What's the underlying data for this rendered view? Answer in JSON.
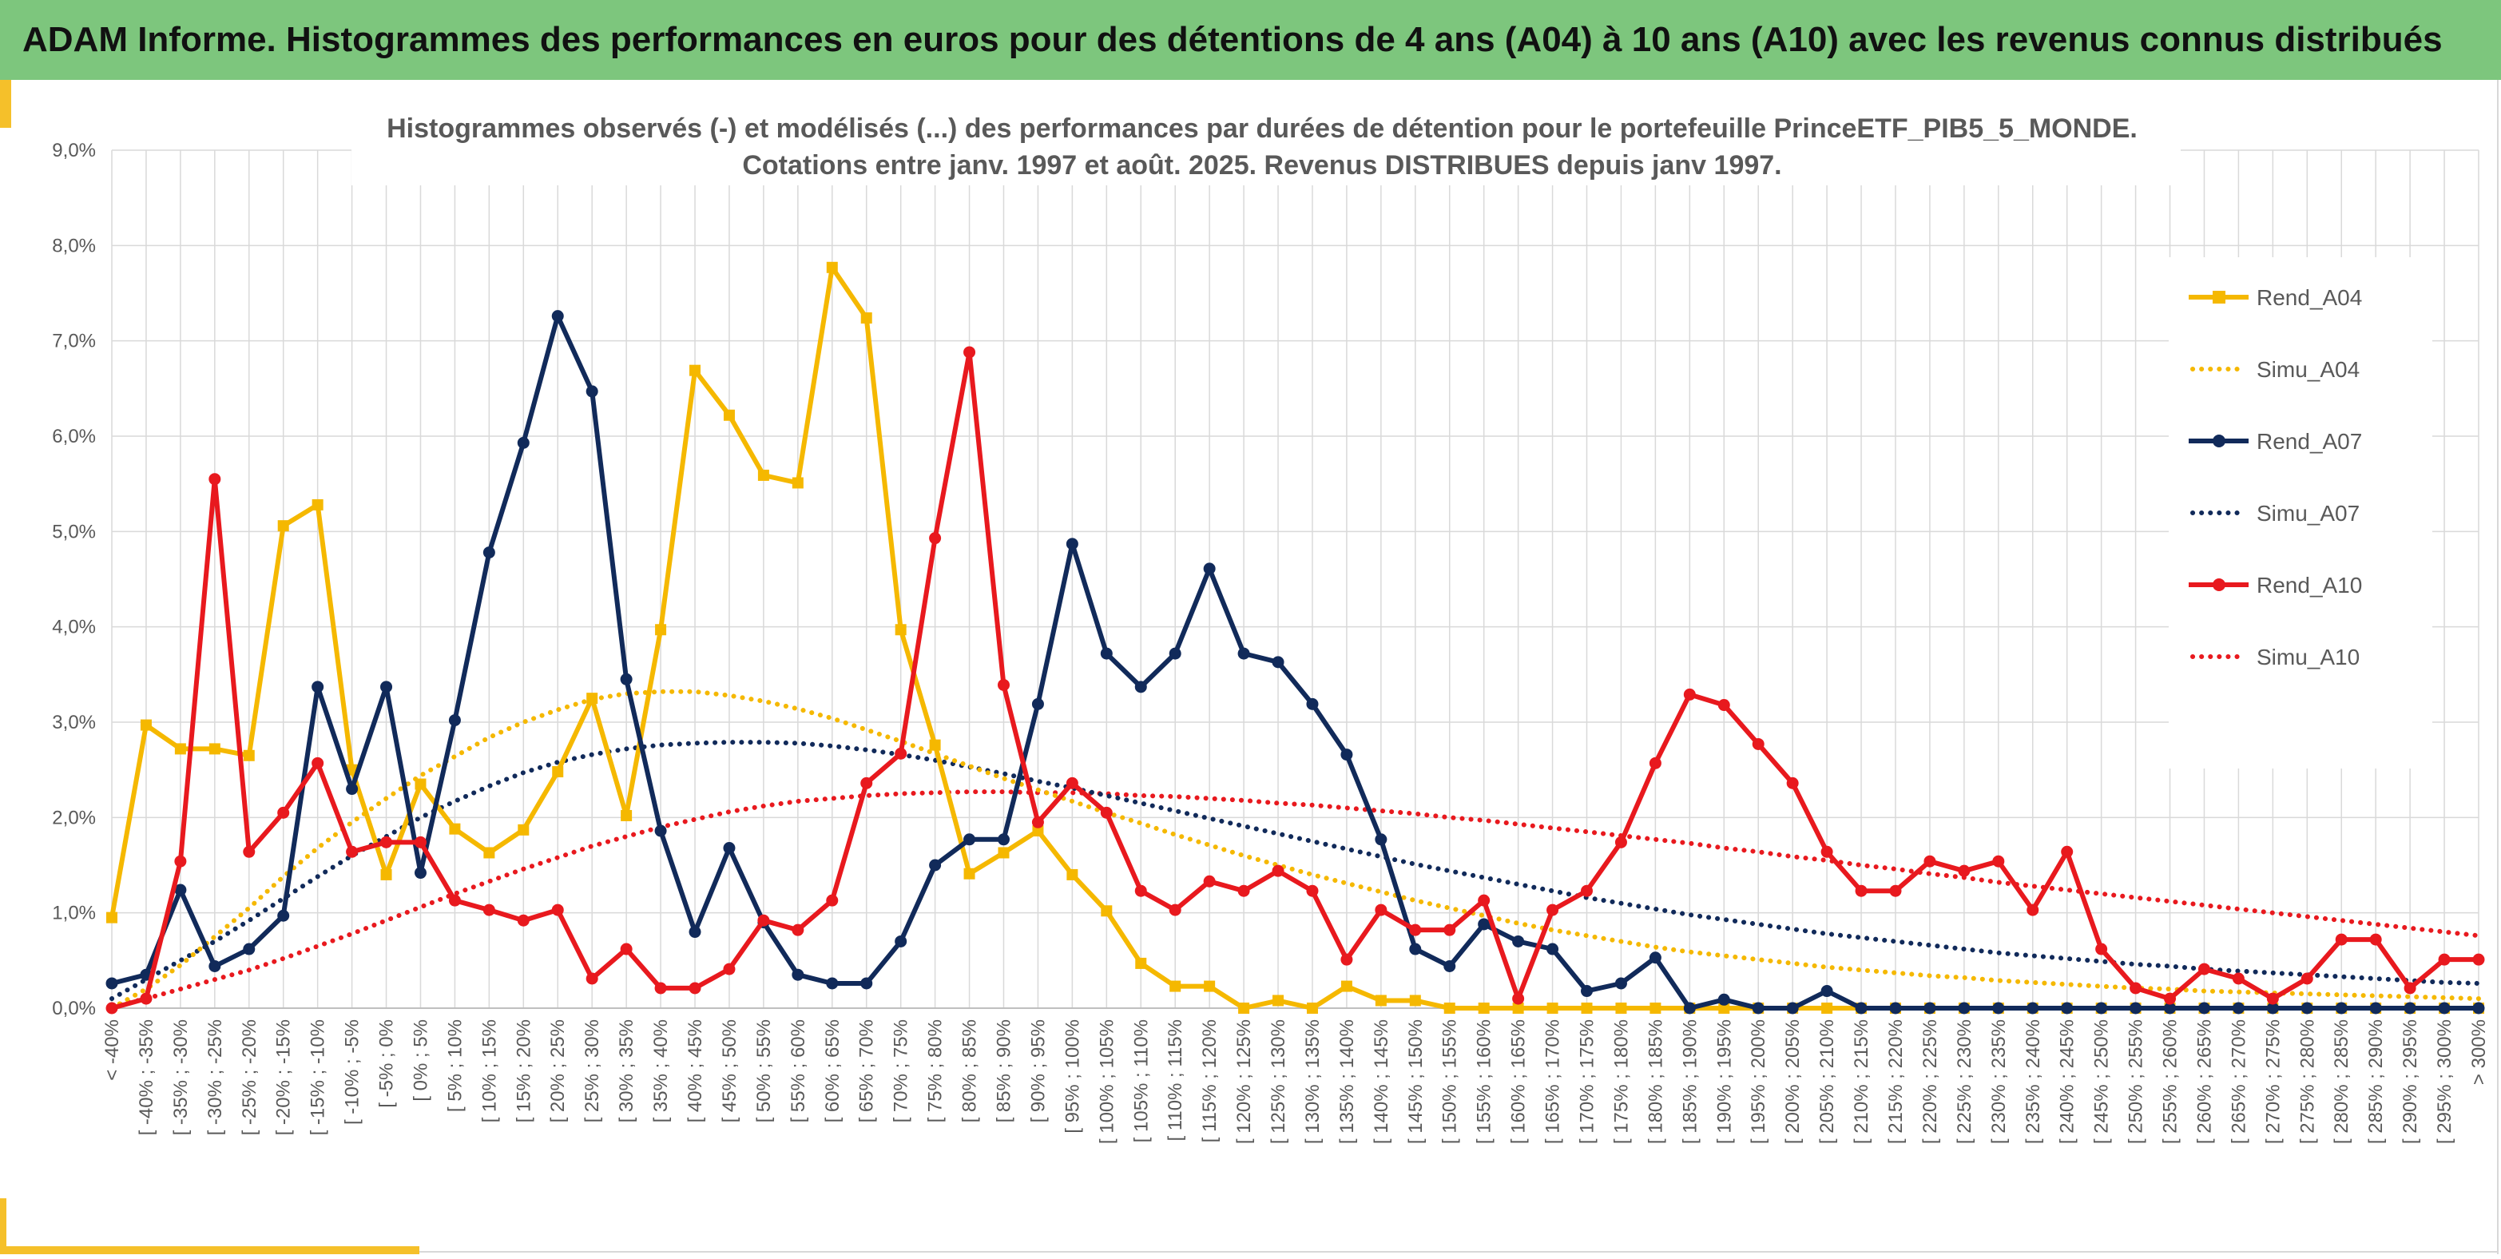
{
  "banner": {
    "title": "ADAM Informe. Histogrammes des performances en euros pour des détentions de 4 ans (A04) à 10 ans (A10) avec les revenus connus distribués",
    "bg_color": "#7dc67d",
    "accent_color": "#f5c02a"
  },
  "chart_data": {
    "type": "line",
    "title_line1": "Histogrammes observés (-) et modélisés (...) des performances par durées de détention pour le portefeuille PrinceETF_PIB5_5_MONDE.",
    "title_line2": "Cotations entre janv. 1997 et août. 2025. Revenus DISTRIBUES depuis janv 1997.",
    "xlabel": "",
    "ylabel": "",
    "ylim": [
      0,
      9
    ],
    "yticks": [
      "0,0%",
      "1,0%",
      "2,0%",
      "3,0%",
      "4,0%",
      "5,0%",
      "6,0%",
      "7,0%",
      "8,0%",
      "9,0%"
    ],
    "grid": true,
    "legend_position": "right",
    "categories": [
      "< -40%",
      "[ -40% ; -35%",
      "[ -35% ; -30%",
      "[ -30% ; -25%",
      "[ -25% ; -20%",
      "[ -20% ; -15%",
      "[ -15% ; -10%",
      "[ -10% ; -5%",
      "[ -5% ; 0%",
      "[ 0% ; 5%",
      "[ 5% ; 10%",
      "[ 10% ; 15%",
      "[ 15% ; 20%",
      "[ 20% ; 25%",
      "[ 25% ; 30%",
      "[ 30% ; 35%",
      "[ 35% ; 40%",
      "[ 40% ; 45%",
      "[ 45% ; 50%",
      "[ 50% ; 55%",
      "[ 55% ; 60%",
      "[ 60% ; 65%",
      "[ 65% ; 70%",
      "[ 70% ; 75%",
      "[ 75% ; 80%",
      "[ 80% ; 85%",
      "[ 85% ; 90%",
      "[ 90% ; 95%",
      "[ 95% ; 100%",
      "[ 100% ; 105%",
      "[ 105% ; 110%",
      "[ 110% ; 115%",
      "[ 115% ; 120%",
      "[ 120% ; 125%",
      "[ 125% ; 130%",
      "[ 130% ; 135%",
      "[ 135% ; 140%",
      "[ 140% ; 145%",
      "[ 145% ; 150%",
      "[ 150% ; 155%",
      "[ 155% ; 160%",
      "[ 160% ; 165%",
      "[ 165% ; 170%",
      "[ 170% ; 175%",
      "[ 175% ; 180%",
      "[ 180% ; 185%",
      "[ 185% ; 190%",
      "[ 190% ; 195%",
      "[ 195% ; 200%",
      "[ 200% ; 205%",
      "[ 205% ; 210%",
      "[ 210% ; 215%",
      "[ 215% ; 220%",
      "[ 220% ; 225%",
      "[ 225% ; 230%",
      "[ 230% ; 235%",
      "[ 235% ; 240%",
      "[ 240% ; 245%",
      "[ 245% ; 250%",
      "[ 250% ; 255%",
      "[ 255% ; 260%",
      "[ 260% ; 265%",
      "[ 265% ; 270%",
      "[ 270% ; 275%",
      "[ 275% ; 280%",
      "[ 280% ; 285%",
      "[ 285% ; 290%",
      "[ 290% ; 295%",
      "[ 295% ; 300%",
      "> 300%"
    ],
    "series": [
      {
        "name": "Rend_A04",
        "kind": "observed",
        "color": "#f5b800",
        "marker": "square",
        "values": [
          0.95,
          2.97,
          2.72,
          2.72,
          2.65,
          5.06,
          5.28,
          2.5,
          1.4,
          2.35,
          1.88,
          1.63,
          1.87,
          2.48,
          3.25,
          2.02,
          3.97,
          6.69,
          6.22,
          5.59,
          5.51,
          7.77,
          7.24,
          3.97,
          2.76,
          1.41,
          1.63,
          1.86,
          1.4,
          1.02,
          0.47,
          0.23,
          0.23,
          0.0,
          0.08,
          0.0,
          0.23,
          0.08,
          0.08,
          0.0,
          0.0,
          0.0,
          0.0,
          0.0,
          0.0,
          0.0,
          0.0,
          0.0,
          0.0,
          0.0,
          0.0,
          0.0,
          0.0,
          0.0,
          0.0,
          0.0,
          0.0,
          0.0,
          0.0,
          0.0,
          0.0,
          0.0,
          0.0,
          0.0,
          0.0,
          0.0,
          0.0,
          0.0,
          0.0,
          0.0
        ]
      },
      {
        "name": "Simu_A04",
        "kind": "model",
        "color": "#f5b800",
        "values": [
          0.0,
          0.2,
          0.45,
          0.75,
          1.05,
          1.38,
          1.68,
          1.95,
          2.2,
          2.44,
          2.64,
          2.84,
          3.0,
          3.13,
          3.24,
          3.3,
          3.32,
          3.32,
          3.28,
          3.22,
          3.14,
          3.04,
          2.92,
          2.8,
          2.67,
          2.54,
          2.41,
          2.29,
          2.17,
          2.05,
          1.94,
          1.82,
          1.71,
          1.6,
          1.5,
          1.4,
          1.31,
          1.22,
          1.13,
          1.05,
          0.97,
          0.89,
          0.82,
          0.76,
          0.7,
          0.64,
          0.59,
          0.55,
          0.51,
          0.47,
          0.43,
          0.4,
          0.37,
          0.34,
          0.32,
          0.29,
          0.27,
          0.25,
          0.23,
          0.21,
          0.2,
          0.18,
          0.17,
          0.16,
          0.15,
          0.14,
          0.13,
          0.12,
          0.11,
          0.1
        ]
      },
      {
        "name": "Rend_A07",
        "kind": "observed",
        "color": "#112a5a",
        "marker": "circle",
        "values": [
          0.26,
          0.35,
          1.24,
          0.44,
          0.62,
          0.97,
          3.37,
          2.3,
          3.37,
          1.42,
          3.02,
          4.78,
          5.93,
          7.26,
          6.47,
          3.45,
          1.86,
          0.8,
          1.68,
          0.9,
          0.35,
          0.26,
          0.26,
          0.7,
          1.5,
          1.77,
          1.77,
          3.19,
          4.87,
          3.72,
          3.37,
          3.72,
          4.61,
          3.72,
          3.63,
          3.19,
          2.66,
          1.77,
          0.62,
          0.44,
          0.88,
          0.7,
          0.62,
          0.18,
          0.26,
          0.53,
          0.0,
          0.09,
          0.0,
          0.0,
          0.18,
          0.0,
          0.0,
          0.0,
          0.0,
          0.0,
          0.0,
          0.0,
          0.0,
          0.0,
          0.0,
          0.0,
          0.0,
          0.0,
          0.0,
          0.0,
          0.0,
          0.0,
          0.0,
          0.0
        ]
      },
      {
        "name": "Simu_A07",
        "kind": "model",
        "color": "#112a5a",
        "values": [
          0.1,
          0.3,
          0.5,
          0.7,
          0.92,
          1.15,
          1.38,
          1.6,
          1.8,
          2.0,
          2.17,
          2.33,
          2.47,
          2.58,
          2.66,
          2.72,
          2.76,
          2.78,
          2.79,
          2.79,
          2.78,
          2.75,
          2.71,
          2.66,
          2.6,
          2.53,
          2.46,
          2.38,
          2.31,
          2.23,
          2.15,
          2.07,
          1.99,
          1.91,
          1.83,
          1.75,
          1.67,
          1.59,
          1.51,
          1.44,
          1.37,
          1.3,
          1.23,
          1.16,
          1.1,
          1.04,
          0.98,
          0.93,
          0.88,
          0.83,
          0.78,
          0.74,
          0.7,
          0.66,
          0.62,
          0.58,
          0.55,
          0.52,
          0.49,
          0.46,
          0.44,
          0.41,
          0.39,
          0.37,
          0.35,
          0.33,
          0.31,
          0.29,
          0.27,
          0.26
        ]
      },
      {
        "name": "Rend_A10",
        "kind": "observed",
        "color": "#e8191e",
        "marker": "circle",
        "values": [
          0.0,
          0.1,
          1.54,
          5.55,
          1.64,
          2.05,
          2.57,
          1.64,
          1.74,
          1.74,
          1.13,
          1.03,
          0.92,
          1.03,
          0.31,
          0.62,
          0.21,
          0.21,
          0.41,
          0.92,
          0.82,
          1.13,
          2.36,
          2.67,
          4.93,
          6.88,
          3.39,
          1.95,
          2.36,
          2.05,
          1.23,
          1.03,
          1.33,
          1.23,
          1.44,
          1.23,
          0.51,
          1.03,
          0.82,
          0.82,
          1.13,
          0.1,
          1.03,
          1.23,
          1.74,
          2.57,
          3.29,
          3.18,
          2.77,
          2.36,
          1.64,
          1.23,
          1.23,
          1.54,
          1.44,
          1.54,
          1.03,
          1.64,
          0.62,
          0.21,
          0.1,
          0.41,
          0.31,
          0.1,
          0.31,
          0.72,
          0.72,
          0.21,
          0.51,
          0.51
        ]
      },
      {
        "name": "Simu_A10",
        "kind": "model",
        "color": "#e8191e",
        "values": [
          0.02,
          0.1,
          0.2,
          0.3,
          0.4,
          0.52,
          0.65,
          0.78,
          0.92,
          1.06,
          1.2,
          1.33,
          1.46,
          1.58,
          1.7,
          1.8,
          1.9,
          1.98,
          2.06,
          2.12,
          2.17,
          2.2,
          2.23,
          2.25,
          2.26,
          2.27,
          2.27,
          2.26,
          2.26,
          2.25,
          2.23,
          2.22,
          2.2,
          2.18,
          2.15,
          2.13,
          2.1,
          2.07,
          2.04,
          2.0,
          1.97,
          1.93,
          1.89,
          1.85,
          1.81,
          1.77,
          1.73,
          1.68,
          1.64,
          1.59,
          1.55,
          1.5,
          1.46,
          1.41,
          1.37,
          1.32,
          1.28,
          1.24,
          1.2,
          1.16,
          1.12,
          1.08,
          1.04,
          1.0,
          0.96,
          0.92,
          0.88,
          0.84,
          0.8,
          0.76
        ]
      }
    ]
  }
}
